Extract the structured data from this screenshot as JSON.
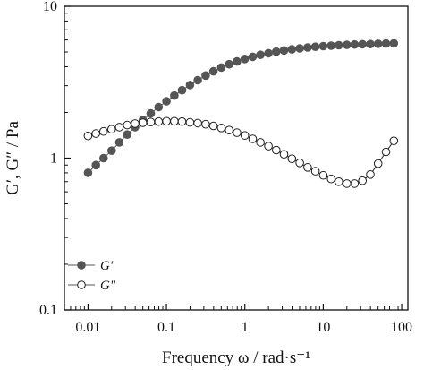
{
  "chart_data": {
    "type": "scatter",
    "title": "",
    "xlabel": "Frequency ω / rad·s⁻¹",
    "ylabel": "G′, G″ / Pa",
    "x_scale": "log",
    "y_scale": "log",
    "xlim": [
      0.005,
      120
    ],
    "ylim": [
      0.1,
      10
    ],
    "x_ticks": [
      0.01,
      0.1,
      1,
      10,
      100
    ],
    "x_tick_labels": [
      "0.01",
      "0.1",
      "1",
      "10",
      "100"
    ],
    "y_ticks": [
      0.1,
      1,
      10
    ],
    "y_tick_labels": [
      "0.1",
      "1",
      "10"
    ],
    "grid": false,
    "legend_position": "bottom-left",
    "x": [
      0.01,
      0.0126,
      0.0158,
      0.02,
      0.0251,
      0.0316,
      0.0398,
      0.0501,
      0.0631,
      0.0794,
      0.1,
      0.126,
      0.158,
      0.2,
      0.251,
      0.316,
      0.398,
      0.501,
      0.631,
      0.794,
      1,
      1.26,
      1.58,
      2,
      2.51,
      3.16,
      3.98,
      5.01,
      6.31,
      7.94,
      10,
      12.6,
      15.8,
      20,
      25.1,
      31.6,
      39.8,
      50.1,
      63.1,
      79.4
    ],
    "series": [
      {
        "name": "G'",
        "marker": "filled-circle",
        "color": "#555555",
        "values": [
          0.8,
          0.9,
          1.0,
          1.12,
          1.27,
          1.43,
          1.6,
          1.78,
          1.97,
          2.17,
          2.37,
          2.58,
          2.8,
          3.03,
          3.26,
          3.5,
          3.73,
          3.95,
          4.15,
          4.33,
          4.5,
          4.65,
          4.79,
          4.91,
          5.02,
          5.12,
          5.2,
          5.28,
          5.35,
          5.41,
          5.46,
          5.5,
          5.54,
          5.57,
          5.6,
          5.62,
          5.64,
          5.66,
          5.68,
          5.7
        ]
      },
      {
        "name": "G\"",
        "marker": "open-circle",
        "color": "#222222",
        "values": [
          1.4,
          1.45,
          1.5,
          1.55,
          1.6,
          1.65,
          1.69,
          1.71,
          1.73,
          1.74,
          1.75,
          1.75,
          1.74,
          1.72,
          1.7,
          1.67,
          1.63,
          1.58,
          1.53,
          1.47,
          1.41,
          1.34,
          1.27,
          1.2,
          1.13,
          1.06,
          0.99,
          0.93,
          0.87,
          0.82,
          0.77,
          0.73,
          0.7,
          0.68,
          0.68,
          0.71,
          0.78,
          0.92,
          1.1,
          1.3
        ]
      }
    ]
  }
}
